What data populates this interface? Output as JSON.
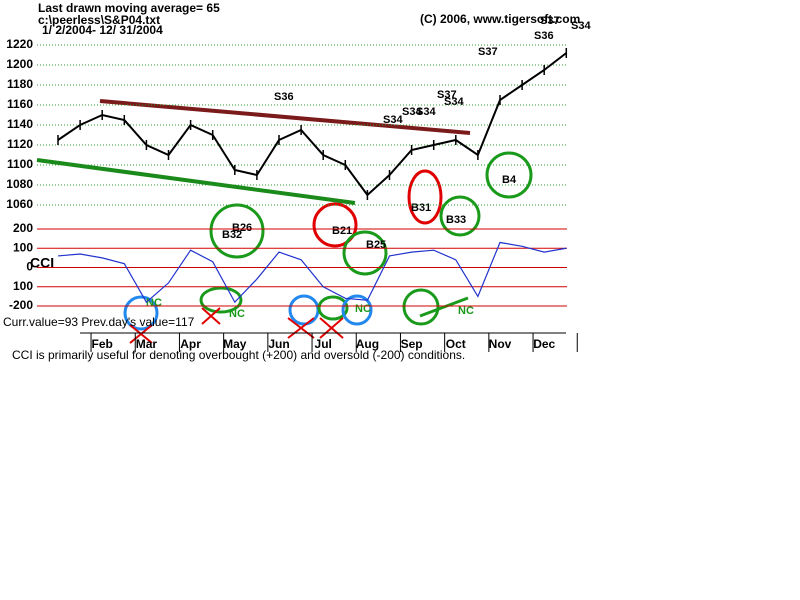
{
  "chart_data": [
    {
      "type": "line",
      "title": "Last drawn moving average= 65",
      "subtitle": "c:\\peerless\\S&P04.txt",
      "date_range": "1/ 2/2004- 12/ 31/2004",
      "copyright": "(C) 2006, www.tigersoft.com",
      "ylim": [
        1060,
        1220
      ],
      "yticks": [
        1060,
        1080,
        1100,
        1120,
        1140,
        1160,
        1180,
        1200,
        1220
      ],
      "grid": true,
      "grid_color": "#2a9a2a",
      "series": [
        {
          "name": "S&P 500",
          "color": "#000000",
          "values": [
            1125,
            1140,
            1150,
            1145,
            1120,
            1110,
            1140,
            1130,
            1095,
            1090,
            1125,
            1135,
            1110,
            1100,
            1070,
            1090,
            1115,
            1120,
            1125,
            1110,
            1165,
            1180,
            1195,
            1212
          ]
        }
      ],
      "annotations": [
        "S36",
        "S34",
        "S34",
        "S34",
        "S37",
        "S34",
        "S37",
        "S36",
        "S37",
        "S34",
        "B32",
        "B26",
        "B21",
        "B25",
        "B31",
        "B33",
        "B4",
        "NC",
        "NC",
        "NC",
        "NC"
      ]
    },
    {
      "type": "line",
      "ylabel": "CCI",
      "ylim": [
        -200,
        200
      ],
      "yticks": [
        -200,
        {
          "value": -100,
          "label": "100"
        },
        0,
        100,
        200
      ],
      "grid": true,
      "grid_color": "#d00000",
      "categories": [
        null,
        null,
        "Feb",
        null,
        "Mar",
        null,
        "Apr",
        null,
        "May",
        null,
        "Jun",
        null,
        "Jul",
        null,
        "Aug",
        null,
        "Sep",
        null,
        "Oct",
        null,
        "Nov",
        null,
        "Dec",
        null
      ],
      "series": [
        {
          "name": "CCI",
          "color": "#2233cc",
          "values": [
            60,
            70,
            50,
            20,
            -180,
            -80,
            90,
            30,
            -180,
            -60,
            80,
            40,
            -100,
            -160,
            -170,
            60,
            80,
            90,
            40,
            -150,
            130,
            110,
            80,
            100
          ]
        }
      ],
      "current": "Curr.value=93 Prev.day's value=117",
      "caption": "CCI is primarily useful for denoting overbought (+200) and oversold (-200) conditions."
    }
  ]
}
